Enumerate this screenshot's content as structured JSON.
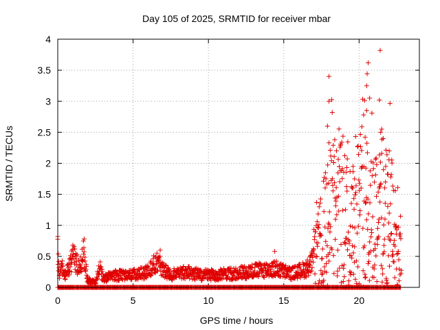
{
  "chart_data": {
    "type": "scatter",
    "title": "Day 105 of 2025, SRMTID for receiver mbar",
    "xlabel": "GPS time / hours",
    "ylabel": "SRMTID / TECUs",
    "xlim": [
      0,
      24
    ],
    "ylim": [
      0,
      4
    ],
    "x_ticks": [
      0,
      5,
      10,
      15,
      20
    ],
    "y_ticks": [
      0,
      0.5,
      1,
      1.5,
      2,
      2.5,
      3,
      3.5,
      4
    ],
    "x_tick_labels": [
      "0",
      "5",
      "10",
      "15",
      "20"
    ],
    "y_tick_labels": [
      "0",
      "0.5",
      "1",
      "1.5",
      "2",
      "2.5",
      "3",
      "3.5",
      "4"
    ],
    "grid": true,
    "marker": "+",
    "marker_color": "#e00000",
    "series": [
      {
        "name": "SRMTID",
        "x_range_hours": [
          0,
          22.8
        ],
        "description_profile": [
          [
            0.0,
            0.55
          ],
          [
            0.1,
            0.2
          ],
          [
            0.3,
            0.3
          ],
          [
            0.5,
            0.18
          ],
          [
            0.8,
            0.35
          ],
          [
            1.0,
            0.55
          ],
          [
            1.2,
            0.4
          ],
          [
            1.5,
            0.3
          ],
          [
            1.7,
            0.55
          ],
          [
            2.0,
            0.1
          ],
          [
            2.5,
            0.08
          ],
          [
            2.8,
            0.3
          ],
          [
            3.0,
            0.15
          ],
          [
            4.0,
            0.2
          ],
          [
            5.0,
            0.2
          ],
          [
            6.0,
            0.25
          ],
          [
            6.6,
            0.45
          ],
          [
            6.9,
            0.3
          ],
          [
            7.5,
            0.2
          ],
          [
            8.5,
            0.25
          ],
          [
            9.5,
            0.2
          ],
          [
            10.5,
            0.2
          ],
          [
            11.5,
            0.22
          ],
          [
            12.5,
            0.25
          ],
          [
            13.5,
            0.28
          ],
          [
            14.5,
            0.3
          ],
          [
            15.5,
            0.22
          ],
          [
            16.5,
            0.3
          ],
          [
            17.2,
            0.5
          ],
          [
            17.8,
            0.9
          ],
          [
            18.3,
            1.1
          ],
          [
            18.8,
            1.2
          ],
          [
            19.3,
            0.9
          ],
          [
            19.8,
            1.1
          ],
          [
            20.3,
            1.3
          ],
          [
            20.8,
            1.0
          ],
          [
            21.3,
            1.2
          ],
          [
            21.8,
            1.1
          ],
          [
            22.3,
            0.9
          ],
          [
            22.8,
            0.6
          ]
        ],
        "highlights": [
          {
            "x": 18.0,
            "y": 3.4
          },
          {
            "x": 18.0,
            "y": 3.0
          },
          {
            "x": 17.9,
            "y": 2.6
          },
          {
            "x": 18.0,
            "y": 2.33
          },
          {
            "x": 20.6,
            "y": 3.62
          },
          {
            "x": 20.5,
            "y": 3.25
          },
          {
            "x": 20.7,
            "y": 3.05
          },
          {
            "x": 20.5,
            "y": 2.85
          },
          {
            "x": 20.3,
            "y": 2.78
          },
          {
            "x": 21.4,
            "y": 3.82
          },
          {
            "x": 21.35,
            "y": 3.02
          },
          {
            "x": 21.5,
            "y": 2.55
          },
          {
            "x": 21.6,
            "y": 2.4
          },
          {
            "x": 22.0,
            "y": 2.2
          },
          {
            "x": 20.4,
            "y": 2.42
          },
          {
            "x": 19.6,
            "y": 1.95
          },
          {
            "x": 19.7,
            "y": 1.75
          },
          {
            "x": 0.0,
            "y": 0.82
          },
          {
            "x": 1.75,
            "y": 0.78
          },
          {
            "x": 6.8,
            "y": 0.6
          },
          {
            "x": 14.4,
            "y": 0.58
          }
        ]
      }
    ]
  }
}
